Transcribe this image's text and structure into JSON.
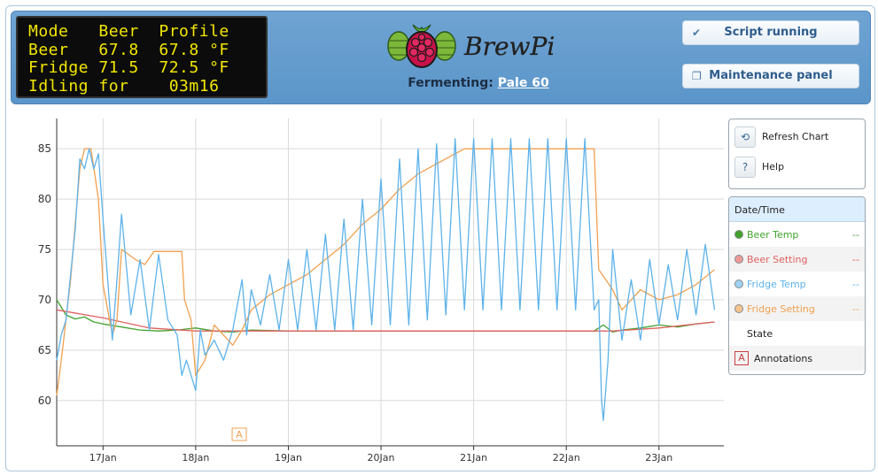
{
  "lcd": {
    "lines": [
      "Mode   Beer  Profile",
      "Beer   67.8  67.8 °F",
      "Fridge 71.5  72.5 °F",
      "Idling for    03m16"
    ]
  },
  "logo": {
    "text": "BrewPi"
  },
  "header": {
    "fermenting_label": "Fermenting:",
    "profile_name": "Pale 60",
    "script_button": "Script running",
    "maintenance_button": "Maintenance panel"
  },
  "controls": {
    "refresh_label": "Refresh Chart",
    "help_label": "Help",
    "help_glyph": "?"
  },
  "legend": {
    "header": "Date/Time",
    "items": [
      {
        "label": "Beer Temp",
        "value": "--",
        "color": "#41a32e"
      },
      {
        "label": "Beer Setting",
        "value": "--",
        "color": "#e06060"
      },
      {
        "label": "Fridge Temp",
        "value": "--",
        "color": "#5db2ea"
      },
      {
        "label": "Fridge Setting",
        "value": "--",
        "color": "#f0a050"
      }
    ],
    "state_label": "State",
    "annotations_label": "Annotations",
    "annotation_glyph": "A"
  },
  "chart_data": {
    "type": "line",
    "title": "",
    "xlabel": "",
    "ylabel": "",
    "x_ticks": [
      "17Jan",
      "18Jan",
      "19Jan",
      "20Jan",
      "21Jan",
      "22Jan",
      "23Jan"
    ],
    "y_ticks": [
      60,
      65,
      70,
      75,
      80,
      85
    ],
    "xlim": [
      16.5,
      23.7
    ],
    "ylim": [
      55.5,
      88
    ],
    "grid": true,
    "annotations": [
      {
        "x": 18.47,
        "label": "A"
      }
    ],
    "series": [
      {
        "name": "Beer Temp",
        "color": "#41a32e",
        "x": [
          16.5,
          16.6,
          16.7,
          16.8,
          16.9,
          17.0,
          17.2,
          17.4,
          17.6,
          17.8,
          18.0,
          18.2,
          18.4,
          18.6,
          19.0,
          20.0,
          21.0,
          22.0,
          22.3,
          22.4,
          22.5,
          22.6,
          22.8,
          23.0,
          23.2,
          23.4,
          23.6
        ],
        "y": [
          70.0,
          68.5,
          68.1,
          68.3,
          67.8,
          67.6,
          67.3,
          67.0,
          66.9,
          67.0,
          67.2,
          66.9,
          66.8,
          67.0,
          66.9,
          66.9,
          66.9,
          66.9,
          66.9,
          67.5,
          66.8,
          67.0,
          67.2,
          67.5,
          67.3,
          67.6,
          67.8
        ]
      },
      {
        "name": "Beer Setting",
        "color": "#e06060",
        "x": [
          16.5,
          17.0,
          17.5,
          18.0,
          18.5,
          19.0,
          20.0,
          21.0,
          22.0,
          22.5,
          23.0,
          23.6
        ],
        "y": [
          69.0,
          68.2,
          67.2,
          66.9,
          66.9,
          66.9,
          66.9,
          66.9,
          66.9,
          66.9,
          67.2,
          67.8
        ]
      },
      {
        "name": "Fridge Setting",
        "color": "#f0a050",
        "x": [
          16.5,
          16.55,
          16.65,
          16.75,
          16.8,
          16.87,
          16.95,
          17.0,
          17.1,
          17.15,
          17.2,
          17.35,
          17.45,
          17.55,
          17.7,
          17.85,
          17.88,
          17.95,
          18.0,
          18.1,
          18.2,
          18.3,
          18.4,
          18.5,
          18.6,
          18.8,
          19.0,
          19.2,
          19.4,
          19.6,
          19.8,
          20.0,
          20.2,
          20.4,
          20.6,
          20.8,
          20.9,
          21.0,
          21.2,
          21.4,
          21.6,
          21.8,
          22.0,
          22.3,
          22.35,
          22.5,
          22.6,
          22.7,
          22.8,
          23.0,
          23.2,
          23.4,
          23.6
        ],
        "y": [
          60.5,
          64.0,
          72.0,
          83.0,
          85.0,
          85.0,
          80.0,
          71.5,
          66.5,
          68.0,
          75.0,
          74.0,
          73.5,
          74.8,
          74.8,
          74.8,
          70.0,
          68.0,
          62.5,
          64.0,
          67.5,
          66.5,
          65.5,
          67.0,
          69.0,
          70.5,
          71.5,
          72.5,
          74.0,
          75.5,
          77.5,
          79.0,
          81.0,
          82.5,
          83.5,
          84.5,
          85.0,
          85.0,
          85.0,
          85.0,
          85.0,
          85.0,
          85.0,
          85.0,
          73.0,
          71.0,
          69.0,
          70.0,
          71.0,
          70.0,
          70.5,
          71.5,
          73.0
        ]
      },
      {
        "name": "Fridge Temp",
        "color": "#5db2ea",
        "x": [
          16.5,
          16.55,
          16.6,
          16.7,
          16.75,
          16.8,
          16.85,
          16.9,
          16.95,
          17.0,
          17.1,
          17.15,
          17.2,
          17.3,
          17.4,
          17.5,
          17.6,
          17.7,
          17.8,
          17.85,
          17.9,
          18.0,
          18.05,
          18.1,
          18.2,
          18.3,
          18.4,
          18.5,
          18.55,
          18.6,
          18.7,
          18.8,
          18.9,
          19.0,
          19.1,
          19.2,
          19.3,
          19.4,
          19.5,
          19.6,
          19.7,
          19.8,
          19.9,
          20.0,
          20.1,
          20.2,
          20.3,
          20.4,
          20.5,
          20.6,
          20.7,
          20.8,
          20.9,
          21.0,
          21.1,
          21.2,
          21.3,
          21.4,
          21.5,
          21.6,
          21.7,
          21.8,
          21.9,
          22.0,
          22.1,
          22.2,
          22.3,
          22.35,
          22.38,
          22.4,
          22.45,
          22.5,
          22.6,
          22.7,
          22.8,
          22.9,
          23.0,
          23.1,
          23.2,
          23.3,
          23.4,
          23.5,
          23.6
        ],
        "y": [
          64.0,
          66.5,
          68.0,
          77.0,
          84.0,
          83.0,
          85.0,
          83.0,
          84.5,
          78.0,
          66.0,
          72.0,
          78.5,
          68.5,
          74.0,
          67.0,
          74.5,
          68.0,
          66.5,
          62.5,
          64.0,
          61.0,
          67.0,
          64.5,
          66.0,
          64.0,
          67.0,
          72.0,
          66.5,
          71.0,
          67.5,
          72.5,
          67.0,
          74.0,
          67.0,
          75.0,
          67.0,
          76.5,
          67.0,
          78.0,
          67.0,
          80.0,
          67.5,
          82.0,
          67.5,
          84.0,
          67.5,
          85.0,
          68.0,
          85.5,
          68.5,
          86.0,
          69.0,
          86.0,
          69.0,
          86.0,
          69.0,
          86.0,
          69.0,
          86.0,
          69.0,
          86.0,
          69.0,
          86.0,
          69.0,
          86.0,
          69.0,
          70.0,
          60.0,
          58.0,
          64.0,
          75.0,
          66.0,
          72.0,
          66.0,
          74.0,
          67.5,
          73.5,
          68.0,
          75.0,
          68.5,
          75.5,
          69.0
        ]
      }
    ]
  }
}
